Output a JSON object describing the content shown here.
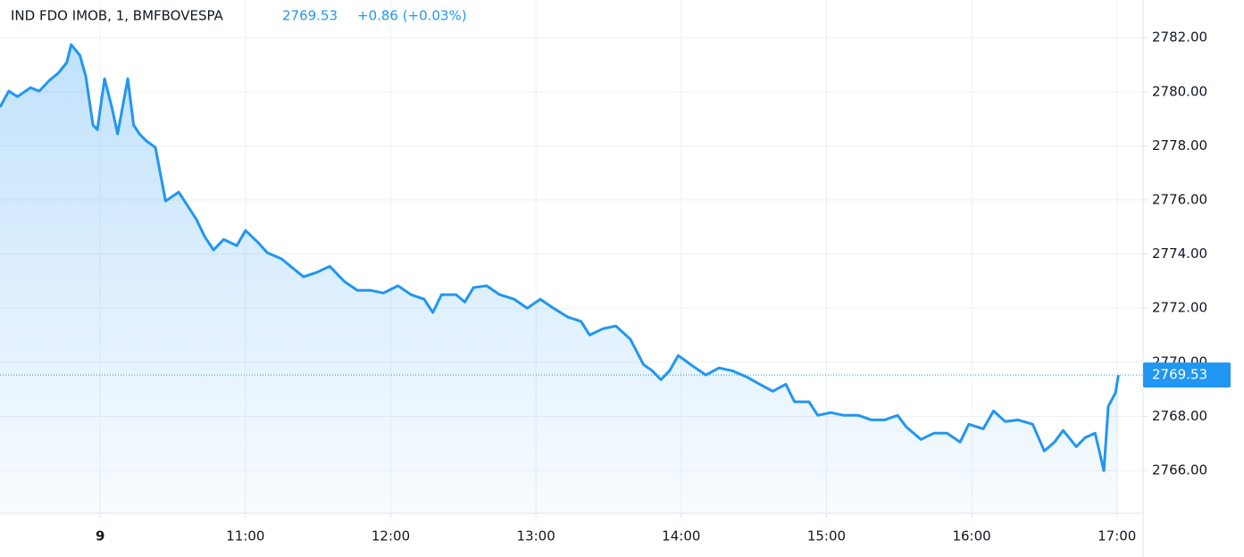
{
  "chart_data": {
    "type": "area-line",
    "title": "IND FDO IMOB, 1, BMFBOVESPA",
    "last_price": 2769.53,
    "change": "+0.86 (+0.03%)",
    "color": "#2196f3",
    "grid": true,
    "x": [
      9.31,
      9.37,
      9.43,
      9.52,
      9.58,
      9.65,
      9.71,
      9.77,
      9.8,
      9.86,
      9.9,
      9.95,
      9.98,
      10.03,
      10.08,
      10.12,
      10.19,
      10.23,
      10.27,
      10.32,
      10.38,
      10.45,
      10.54,
      10.6,
      10.66,
      10.72,
      10.78,
      10.85,
      10.94,
      11.0,
      11.09,
      11.15,
      11.25,
      11.31,
      11.4,
      11.49,
      11.58,
      11.68,
      11.77,
      11.86,
      11.95,
      12.05,
      12.14,
      12.23,
      12.29,
      12.35,
      12.45,
      12.51,
      12.57,
      12.66,
      12.75,
      12.85,
      12.94,
      13.03,
      13.12,
      13.22,
      13.31,
      13.37,
      13.46,
      13.55,
      13.65,
      13.74,
      13.8,
      13.86,
      13.92,
      13.98,
      14.08,
      14.17,
      14.26,
      14.35,
      14.45,
      14.54,
      14.63,
      14.72,
      14.78,
      14.88,
      14.94,
      15.03,
      15.12,
      15.22,
      15.31,
      15.4,
      15.49,
      15.55,
      15.65,
      15.74,
      15.83,
      15.92,
      15.98,
      16.08,
      16.15,
      16.23,
      16.32,
      16.42,
      16.5,
      16.57,
      16.63,
      16.72,
      16.78,
      16.85,
      16.91,
      16.94,
      16.99,
      17.01
    ],
    "values": [
      2779.43,
      2780.02,
      2779.82,
      2780.15,
      2780.02,
      2780.42,
      2780.68,
      2781.08,
      2781.74,
      2781.34,
      2780.58,
      2778.77,
      2778.6,
      2780.48,
      2779.43,
      2778.44,
      2780.48,
      2778.77,
      2778.44,
      2778.17,
      2777.94,
      2775.96,
      2776.29,
      2775.8,
      2775.3,
      2774.64,
      2774.15,
      2774.54,
      2774.31,
      2774.87,
      2774.41,
      2774.05,
      2773.82,
      2773.55,
      2773.16,
      2773.32,
      2773.55,
      2772.99,
      2772.66,
      2772.66,
      2772.56,
      2772.83,
      2772.5,
      2772.33,
      2771.84,
      2772.5,
      2772.5,
      2772.23,
      2772.76,
      2772.83,
      2772.5,
      2772.33,
      2772.0,
      2772.33,
      2772.0,
      2771.67,
      2771.51,
      2771.01,
      2771.24,
      2771.34,
      2770.85,
      2769.92,
      2769.69,
      2769.36,
      2769.69,
      2770.25,
      2769.86,
      2769.53,
      2769.79,
      2769.69,
      2769.46,
      2769.19,
      2768.93,
      2769.19,
      2768.54,
      2768.54,
      2768.04,
      2768.14,
      2768.04,
      2768.04,
      2767.87,
      2767.87,
      2768.04,
      2767.61,
      2767.15,
      2767.38,
      2767.38,
      2767.05,
      2767.71,
      2767.54,
      2768.2,
      2767.81,
      2767.87,
      2767.71,
      2766.72,
      2767.05,
      2767.48,
      2766.88,
      2767.21,
      2767.38,
      2765.99,
      2768.37,
      2768.87,
      2769.53
    ],
    "xlim": [
      9.31,
      17.18
    ],
    "xticks": [
      {
        "value": 10,
        "label": "9"
      },
      {
        "value": 11,
        "label": "11:00"
      },
      {
        "value": 12,
        "label": "12:00"
      },
      {
        "value": 13,
        "label": "13:00"
      },
      {
        "value": 14,
        "label": "14:00"
      },
      {
        "value": 15,
        "label": "15:00"
      },
      {
        "value": 16,
        "label": "16:00"
      },
      {
        "value": 17,
        "label": "17:00"
      }
    ],
    "ylim": [
      2764.42,
      2783.39
    ],
    "yticks": [
      {
        "value": 2766,
        "label": "2766.00"
      },
      {
        "value": 2768,
        "label": "2768.00"
      },
      {
        "value": 2770,
        "label": "2770.00"
      },
      {
        "value": 2772,
        "label": "2772.00"
      },
      {
        "value": 2774,
        "label": "2774.00"
      },
      {
        "value": 2776,
        "label": "2776.00"
      },
      {
        "value": 2778,
        "label": "2778.00"
      },
      {
        "value": 2780,
        "label": "2780.00"
      },
      {
        "value": 2782,
        "label": "2782.00"
      }
    ]
  }
}
